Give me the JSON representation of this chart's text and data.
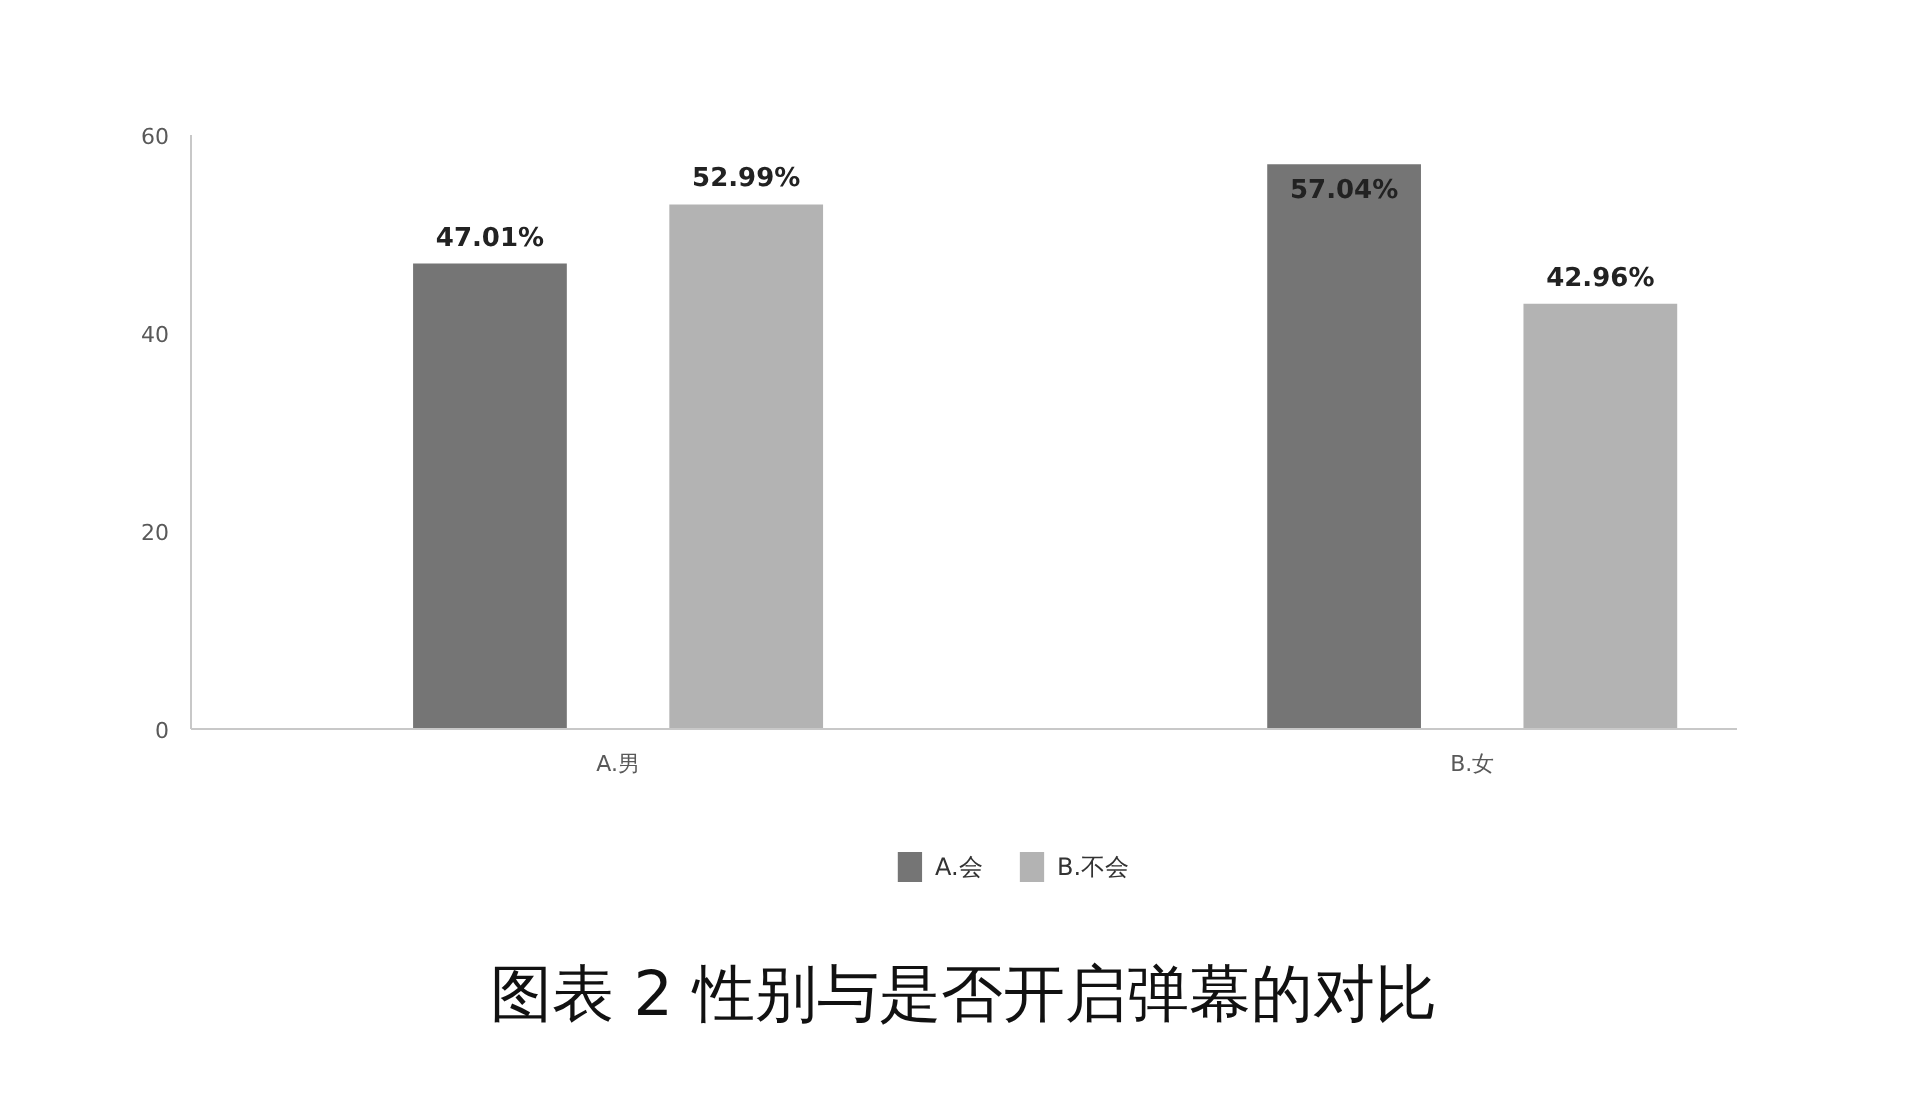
{
  "chart_data": {
    "type": "bar",
    "title": "图表 2 性别与是否开启弹幕的对比",
    "categories": [
      "A.男",
      "B.女"
    ],
    "series": [
      {
        "name": "A.会",
        "color": "#757575",
        "values": [
          47.01,
          57.04
        ],
        "value_labels": [
          "47.01%",
          "57.04%"
        ]
      },
      {
        "name": "B.不会",
        "color": "#b3b3b3",
        "values": [
          52.99,
          42.96
        ],
        "value_labels": [
          "52.99%",
          "42.96%"
        ]
      }
    ],
    "ylim": [
      0,
      60
    ],
    "yticks": [
      0,
      20,
      40,
      60
    ],
    "grid": false,
    "legend": "bottom"
  }
}
